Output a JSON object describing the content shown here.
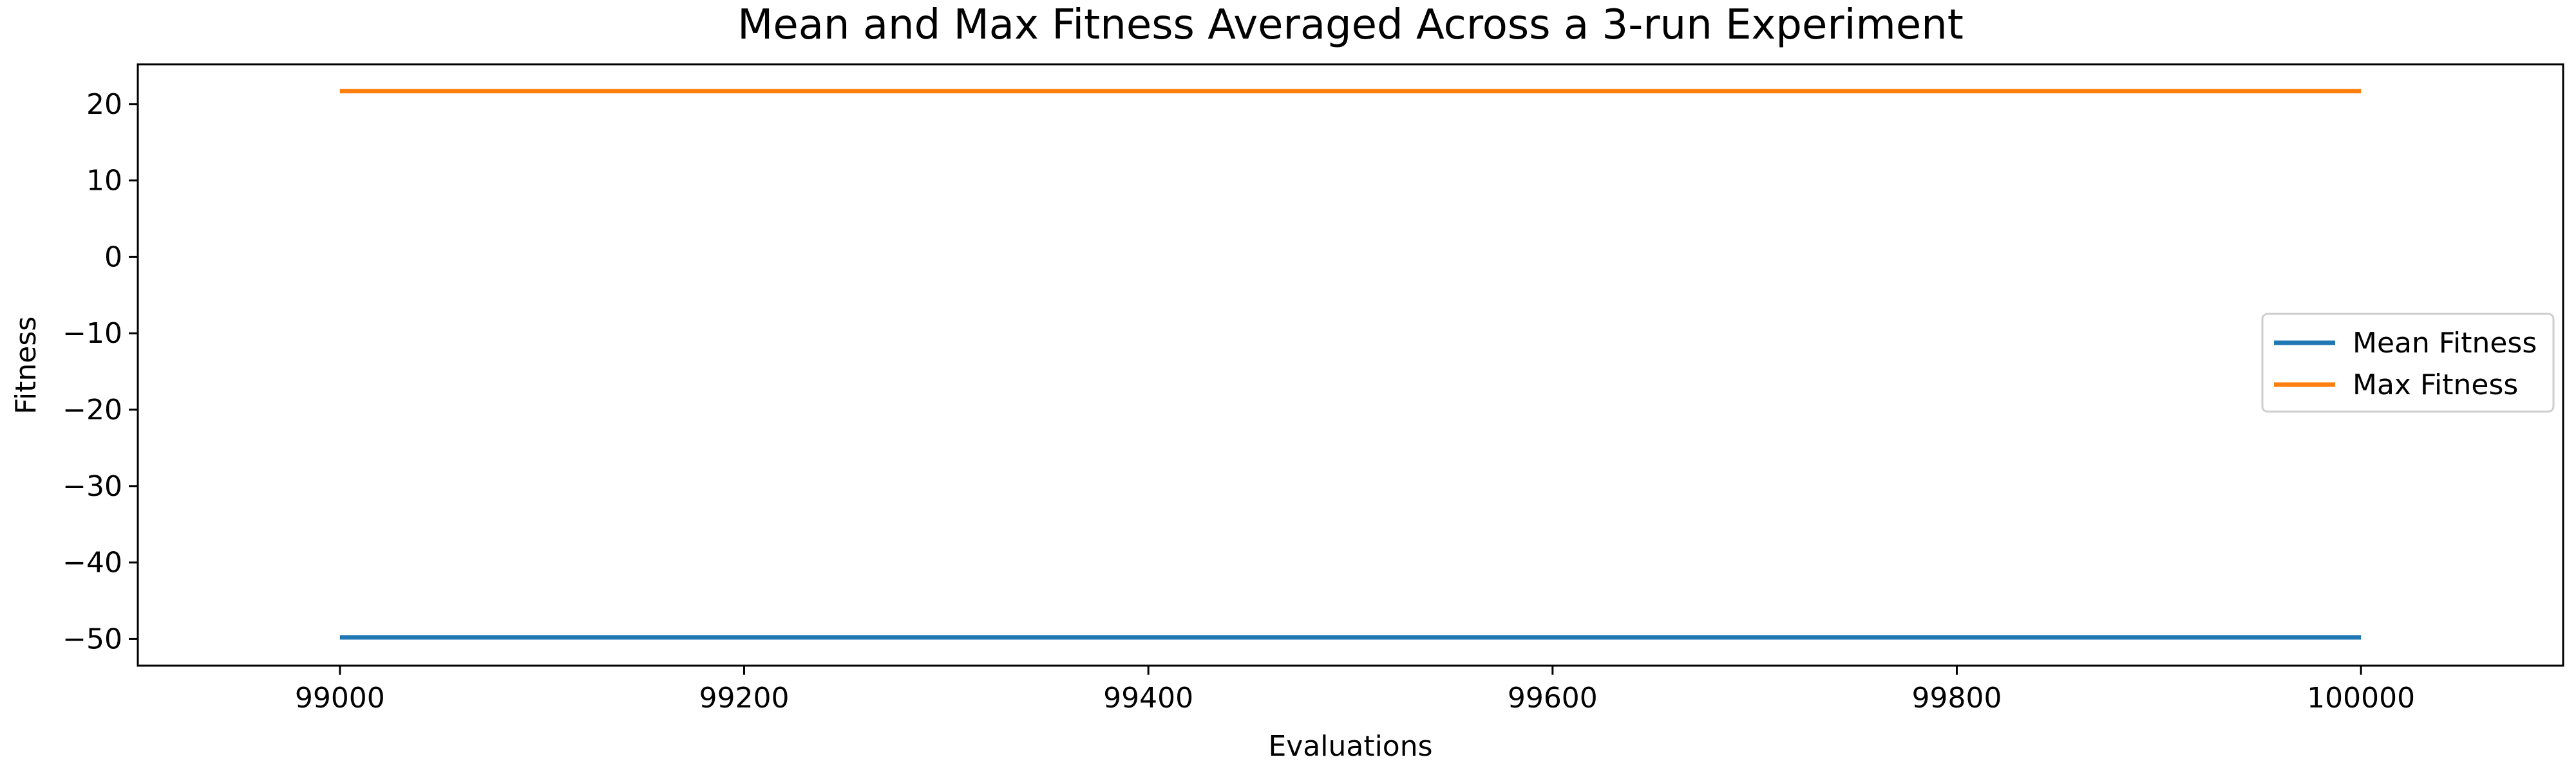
{
  "chart_data": {
    "type": "line",
    "title": "Mean and Max Fitness Averaged Across a 3-run Experiment",
    "xlabel": "Evaluations",
    "ylabel": "Fitness",
    "xlim": [
      98900,
      100100
    ],
    "ylim": [
      -53.5,
      25.2
    ],
    "xticks": [
      99000,
      99200,
      99400,
      99600,
      99800,
      100000
    ],
    "xtick_labels": [
      "99000",
      "99200",
      "99400",
      "99600",
      "99800",
      "100000"
    ],
    "yticks": [
      20,
      10,
      0,
      -10,
      -20,
      -30,
      -40,
      -50
    ],
    "ytick_labels": [
      "20",
      "10",
      "0",
      "−10",
      "−20",
      "−30",
      "−40",
      "−50"
    ],
    "grid": false,
    "legend_position": "center-right",
    "series": [
      {
        "name": "Mean Fitness",
        "color": "#1f77b4",
        "x": [
          99000,
          100000
        ],
        "y": [
          -49.8,
          -49.8
        ]
      },
      {
        "name": "Max Fitness",
        "color": "#ff7f0e",
        "x": [
          99000,
          100000
        ],
        "y": [
          21.7,
          21.7
        ]
      }
    ]
  }
}
